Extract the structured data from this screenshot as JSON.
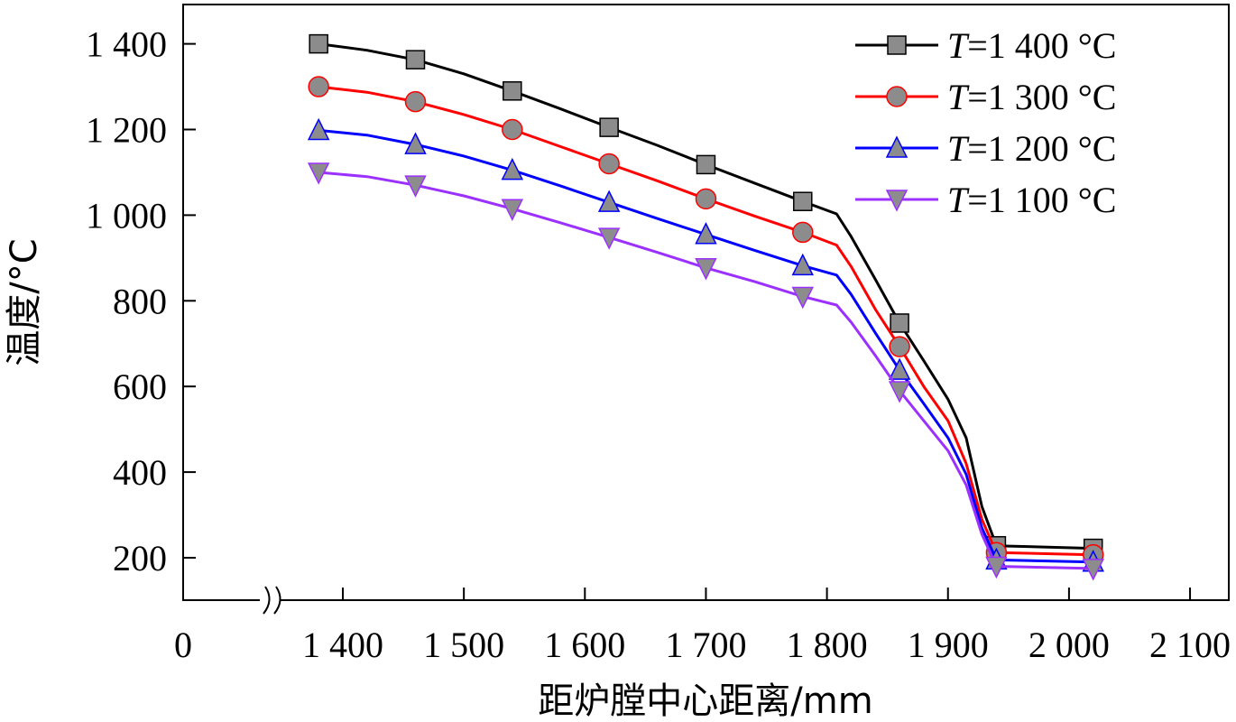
{
  "chart_data": {
    "type": "line",
    "xlabel": "距炉膛中心距离/mm",
    "ylabel": "温度/°C",
    "x_ticks": [
      {
        "value": 0,
        "label": "0"
      },
      {
        "value": 1400,
        "label": "1 400"
      },
      {
        "value": 1500,
        "label": "1 500"
      },
      {
        "value": 1600,
        "label": "1 600"
      },
      {
        "value": 1700,
        "label": "1 700"
      },
      {
        "value": 1800,
        "label": "1 800"
      },
      {
        "value": 1900,
        "label": "1 900"
      },
      {
        "value": 2000,
        "label": "2 000"
      },
      {
        "value": 2100,
        "label": "2 100"
      }
    ],
    "y_ticks": [
      {
        "value": 200,
        "label": "200"
      },
      {
        "value": 400,
        "label": "400"
      },
      {
        "value": 600,
        "label": "600"
      },
      {
        "value": 800,
        "label": "800"
      },
      {
        "value": 1000,
        "label": "1 000"
      },
      {
        "value": 1200,
        "label": "1 200"
      },
      {
        "value": 1400,
        "label": "1 400"
      }
    ],
    "xlim": [
      1310,
      2100
    ],
    "x_axis_break": true,
    "ylim": [
      100,
      1500
    ],
    "grid": false,
    "legend_position": "top-right",
    "marker_x": [
      1380,
      1460,
      1540,
      1620,
      1700,
      1780,
      1860,
      1940,
      2020
    ],
    "series": [
      {
        "name": "T=1 400 °C",
        "name_italic": "T",
        "name_rest": "=1 400 °C",
        "color": "#000000",
        "marker": "square",
        "marker_fill": "#8c8c8c",
        "curve": [
          [
            1380,
            1400
          ],
          [
            1420,
            1385
          ],
          [
            1460,
            1363
          ],
          [
            1500,
            1330
          ],
          [
            1540,
            1290
          ],
          [
            1580,
            1248
          ],
          [
            1620,
            1205
          ],
          [
            1660,
            1163
          ],
          [
            1700,
            1118
          ],
          [
            1740,
            1075
          ],
          [
            1780,
            1032
          ],
          [
            1808,
            1003
          ],
          [
            1820,
            950
          ],
          [
            1840,
            850
          ],
          [
            1860,
            748
          ],
          [
            1880,
            660
          ],
          [
            1900,
            570
          ],
          [
            1915,
            480
          ],
          [
            1928,
            320
          ],
          [
            1940,
            228
          ],
          [
            2020,
            222
          ]
        ],
        "markers": [
          1400,
          1363,
          1290,
          1205,
          1118,
          1032,
          748,
          228,
          222
        ]
      },
      {
        "name": "T=1 300 °C",
        "name_italic": "T",
        "name_rest": "=1 300 °C",
        "color": "#ff0000",
        "marker": "circle",
        "marker_fill": "#8c8c8c",
        "curve": [
          [
            1380,
            1300
          ],
          [
            1420,
            1287
          ],
          [
            1460,
            1265
          ],
          [
            1500,
            1235
          ],
          [
            1540,
            1200
          ],
          [
            1580,
            1160
          ],
          [
            1620,
            1120
          ],
          [
            1660,
            1080
          ],
          [
            1700,
            1038
          ],
          [
            1740,
            998
          ],
          [
            1780,
            960
          ],
          [
            1808,
            930
          ],
          [
            1820,
            880
          ],
          [
            1840,
            780
          ],
          [
            1860,
            693
          ],
          [
            1880,
            600
          ],
          [
            1900,
            520
          ],
          [
            1915,
            420
          ],
          [
            1928,
            290
          ],
          [
            1940,
            212
          ],
          [
            2020,
            207
          ]
        ],
        "markers": [
          1300,
          1265,
          1200,
          1120,
          1038,
          960,
          693,
          212,
          207
        ]
      },
      {
        "name": "T=1 200 °C",
        "name_italic": "T",
        "name_rest": "=1 200 °C",
        "color": "#0000ff",
        "marker": "triangle-up",
        "marker_fill": "#8c8c8c",
        "curve": [
          [
            1380,
            1198
          ],
          [
            1420,
            1187
          ],
          [
            1460,
            1165
          ],
          [
            1500,
            1138
          ],
          [
            1540,
            1105
          ],
          [
            1580,
            1068
          ],
          [
            1620,
            1030
          ],
          [
            1660,
            992
          ],
          [
            1700,
            955
          ],
          [
            1740,
            918
          ],
          [
            1780,
            882
          ],
          [
            1808,
            860
          ],
          [
            1820,
            815
          ],
          [
            1840,
            725
          ],
          [
            1860,
            638
          ],
          [
            1880,
            560
          ],
          [
            1900,
            480
          ],
          [
            1915,
            395
          ],
          [
            1928,
            270
          ],
          [
            1940,
            195
          ],
          [
            2020,
            190
          ]
        ],
        "markers": [
          1198,
          1165,
          1105,
          1030,
          955,
          882,
          638,
          195,
          190
        ]
      },
      {
        "name": "T=1 100 °C",
        "name_italic": "T",
        "name_rest": "=1 100 °C",
        "color": "#9b30ff",
        "marker": "triangle-down",
        "marker_fill": "#8c8c8c",
        "curve": [
          [
            1380,
            1100
          ],
          [
            1420,
            1090
          ],
          [
            1460,
            1070
          ],
          [
            1500,
            1045
          ],
          [
            1540,
            1015
          ],
          [
            1580,
            982
          ],
          [
            1620,
            948
          ],
          [
            1660,
            913
          ],
          [
            1700,
            877
          ],
          [
            1740,
            845
          ],
          [
            1780,
            810
          ],
          [
            1808,
            790
          ],
          [
            1820,
            750
          ],
          [
            1840,
            672
          ],
          [
            1860,
            590
          ],
          [
            1880,
            520
          ],
          [
            1900,
            450
          ],
          [
            1915,
            370
          ],
          [
            1928,
            255
          ],
          [
            1940,
            180
          ],
          [
            2020,
            175
          ]
        ],
        "markers": [
          1100,
          1070,
          1015,
          948,
          877,
          810,
          590,
          180,
          175
        ]
      }
    ]
  }
}
